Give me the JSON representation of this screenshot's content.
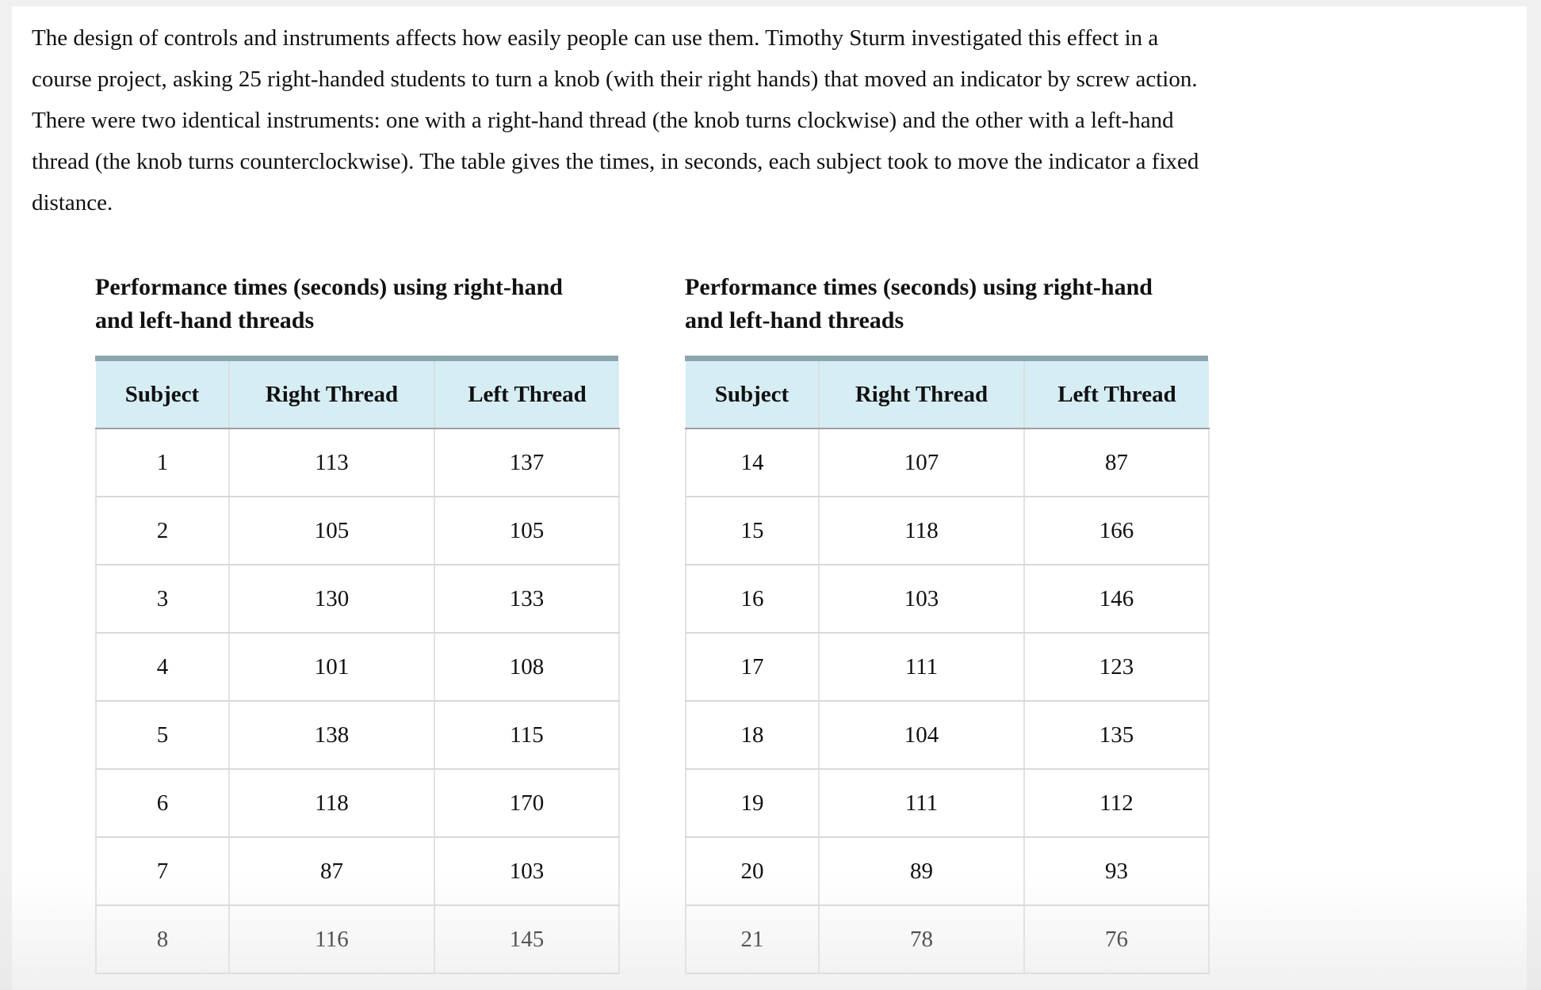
{
  "intro": {
    "text": "The design of controls and instruments affects how easily people can use them. Timothy Sturm investigated this effect in a course project, asking 25 right-handed students to turn a knob (with their right hands) that moved an indicator by screw action. There were two identical instruments: one with a right-hand thread (the knob turns clockwise) and the other with a left-hand thread (the knob turns counterclockwise). The table gives the times, in seconds, each subject took to move the indicator a fixed distance."
  },
  "tables": [
    {
      "title": "Performance times (seconds) using right-hand and left-hand threads",
      "columns": [
        "Subject",
        "Right Thread",
        "Left Thread"
      ],
      "rows": [
        [
          1,
          113,
          137
        ],
        [
          2,
          105,
          105
        ],
        [
          3,
          130,
          133
        ],
        [
          4,
          101,
          108
        ],
        [
          5,
          138,
          115
        ],
        [
          6,
          118,
          170
        ],
        [
          7,
          87,
          103
        ],
        [
          8,
          116,
          145
        ]
      ]
    },
    {
      "title": "Performance times (seconds) using right-hand and left-hand threads",
      "columns": [
        "Subject",
        "Right Thread",
        "Left Thread"
      ],
      "rows": [
        [
          14,
          107,
          87
        ],
        [
          15,
          118,
          166
        ],
        [
          16,
          103,
          146
        ],
        [
          17,
          111,
          123
        ],
        [
          18,
          104,
          135
        ],
        [
          19,
          111,
          112
        ],
        [
          20,
          89,
          93
        ],
        [
          21,
          78,
          76
        ]
      ]
    }
  ],
  "colors": {
    "outer_bg": "#f0f0f1",
    "surface": "#ffffff",
    "text": "#111111",
    "top_bar": "#8ba6af",
    "header_fill": "#d6edf4",
    "header_divider": "#d7dfe2",
    "header_bottom_border": "#9f9f9f",
    "row_border": "#d9d9d9",
    "column_border": "#e2e2e2"
  }
}
